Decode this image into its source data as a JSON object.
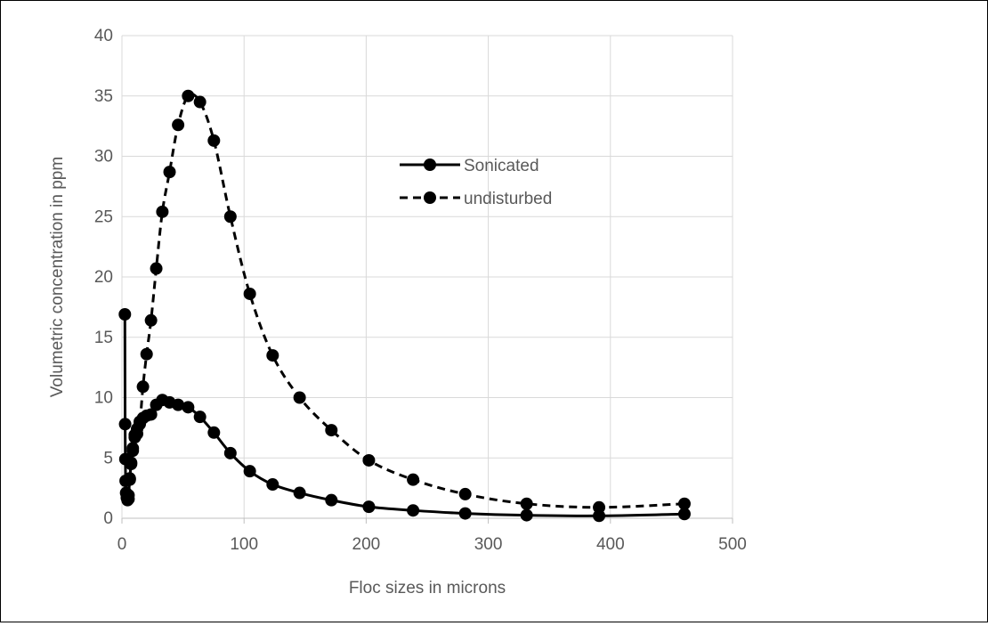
{
  "chart_data": {
    "type": "scatter",
    "title": "",
    "xlabel": "Floc sizes in microns",
    "ylabel": "Volumetric concentration in ppm",
    "xlim": [
      0,
      500
    ],
    "ylim": [
      0,
      40
    ],
    "x_ticks": [
      "0",
      "100",
      "200",
      "300",
      "400",
      "500"
    ],
    "y_ticks": [
      "0",
      "5",
      "10",
      "15",
      "20",
      "25",
      "30",
      "35",
      "40"
    ],
    "grid": true,
    "legend_position": "upper-middle",
    "series": [
      {
        "name": "Sonicated",
        "line_style": "solid",
        "color": "#000000",
        "points": [
          [
            2.4,
            16.9
          ],
          [
            2.6,
            7.8
          ],
          [
            2.8,
            4.9
          ],
          [
            3.0,
            3.1
          ],
          [
            3.4,
            2.1
          ],
          [
            4.0,
            1.7
          ],
          [
            4.6,
            1.5
          ],
          [
            5.4,
            1.9
          ],
          [
            6.4,
            3.2
          ],
          [
            7.5,
            4.5
          ],
          [
            8.9,
            5.6
          ],
          [
            10.5,
            6.7
          ],
          [
            12.4,
            7.4
          ],
          [
            14.6,
            8.0
          ],
          [
            17.2,
            8.3
          ],
          [
            20.2,
            8.5
          ],
          [
            23.8,
            8.6
          ],
          [
            28.1,
            9.4
          ],
          [
            33.1,
            9.8
          ],
          [
            39.0,
            9.6
          ],
          [
            46.0,
            9.4
          ],
          [
            54.2,
            9.2
          ],
          [
            63.9,
            8.4
          ],
          [
            75.3,
            7.1
          ],
          [
            88.8,
            5.4
          ],
          [
            104.7,
            3.9
          ],
          [
            123.4,
            2.8
          ],
          [
            145.5,
            2.1
          ],
          [
            171.5,
            1.5
          ],
          [
            202.2,
            0.95
          ],
          [
            238.4,
            0.65
          ],
          [
            281.1,
            0.4
          ],
          [
            331.4,
            0.25
          ],
          [
            390.7,
            0.2
          ],
          [
            460.6,
            0.35
          ]
        ]
      },
      {
        "name": "undisturbed",
        "line_style": "dashed",
        "color": "#000000",
        "points": [
          [
            5.4,
            1.6
          ],
          [
            6.4,
            3.3
          ],
          [
            7.5,
            4.6
          ],
          [
            8.9,
            5.8
          ],
          [
            10.5,
            6.9
          ],
          [
            12.4,
            7.0
          ],
          [
            14.6,
            7.8
          ],
          [
            17.2,
            10.9
          ],
          [
            20.2,
            13.6
          ],
          [
            23.8,
            16.4
          ],
          [
            28.1,
            20.7
          ],
          [
            33.1,
            25.4
          ],
          [
            39.0,
            28.7
          ],
          [
            46.0,
            32.6
          ],
          [
            54.2,
            35.0
          ],
          [
            63.9,
            34.5
          ],
          [
            75.3,
            31.3
          ],
          [
            88.8,
            25.0
          ],
          [
            104.7,
            18.6
          ],
          [
            123.4,
            13.5
          ],
          [
            145.5,
            10.0
          ],
          [
            171.5,
            7.3
          ],
          [
            202.2,
            4.8
          ],
          [
            238.4,
            3.2
          ],
          [
            281.1,
            2.0
          ],
          [
            331.4,
            1.2
          ],
          [
            390.7,
            0.9
          ],
          [
            460.6,
            1.2
          ]
        ]
      }
    ]
  }
}
